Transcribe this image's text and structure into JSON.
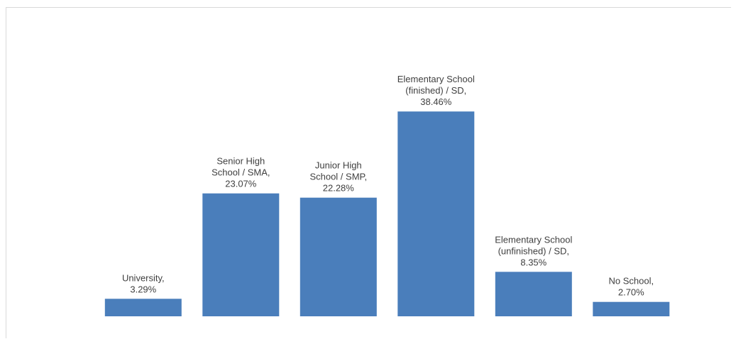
{
  "chart_data": {
    "type": "bar",
    "title": "",
    "xlabel": "",
    "ylabel": "",
    "ylim": [
      0,
      40
    ],
    "grid": false,
    "legend": "none",
    "bar_color": "#4a7ebb",
    "categories": [
      "University",
      "Senior High School / SMA",
      "Junior High School / SMP",
      "Elementary School (finished) / SD",
      "Elementary School (unfinished) / SD",
      "No School"
    ],
    "values": [
      3.29,
      23.07,
      22.28,
      38.46,
      8.35,
      2.7
    ],
    "data_labels": [
      [
        "University,",
        "3.29%"
      ],
      [
        "Senior High",
        "School / SMA,",
        "23.07%"
      ],
      [
        "Junior High",
        "School / SMP,",
        "22.28%"
      ],
      [
        "Elementary School",
        "(finished) / SD,",
        "38.46%"
      ],
      [
        "Elementary School",
        "(unfinished) / SD,",
        "8.35%"
      ],
      [
        "No School,",
        "2.70%"
      ]
    ]
  }
}
